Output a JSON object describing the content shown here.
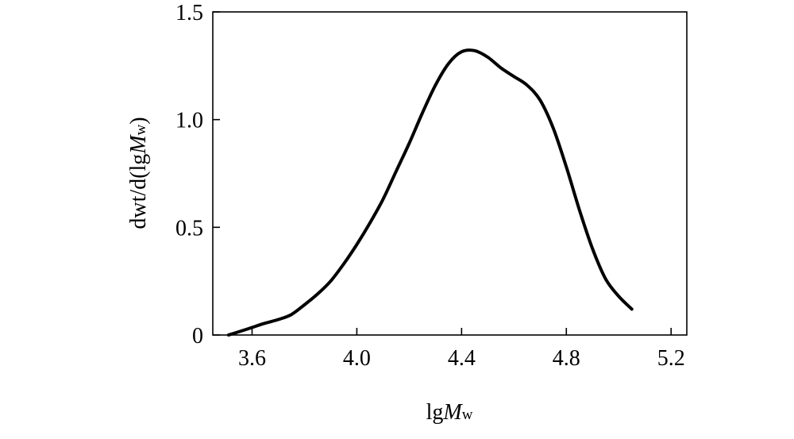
{
  "chart_data": {
    "type": "line",
    "xlabel_main": "lg",
    "xlabel_italic": "M",
    "xlabel_sub": "w",
    "ylabel_main": "dwt/d(lg",
    "ylabel_italic": "M",
    "ylabel_sub": "w",
    "ylabel_close": ")",
    "xlim": [
      3.45,
      5.26
    ],
    "ylim": [
      0,
      1.5
    ],
    "xticks": [
      3.6,
      4.0,
      4.4,
      4.8,
      5.2
    ],
    "xtick_labels": [
      "3.6",
      "4.0",
      "4.4",
      "4.8",
      "5.2"
    ],
    "yticks": [
      0,
      0.5,
      1.0,
      1.5
    ],
    "ytick_labels": [
      "0",
      "0.5",
      "1.0",
      "1.5"
    ],
    "grid": false,
    "series": [
      {
        "color": "#000000",
        "x": [
          3.51,
          3.55,
          3.6,
          3.65,
          3.7,
          3.75,
          3.8,
          3.85,
          3.9,
          3.95,
          4.0,
          4.05,
          4.1,
          4.15,
          4.2,
          4.25,
          4.3,
          4.35,
          4.4,
          4.45,
          4.5,
          4.55,
          4.6,
          4.65,
          4.7,
          4.75,
          4.8,
          4.85,
          4.9,
          4.95,
          5.0,
          5.05
        ],
        "y": [
          0.0,
          0.015,
          0.035,
          0.055,
          0.072,
          0.095,
          0.14,
          0.19,
          0.25,
          0.33,
          0.42,
          0.52,
          0.63,
          0.76,
          0.89,
          1.03,
          1.16,
          1.26,
          1.315,
          1.32,
          1.29,
          1.24,
          1.2,
          1.16,
          1.09,
          0.96,
          0.78,
          0.58,
          0.4,
          0.26,
          0.18,
          0.12
        ]
      }
    ]
  }
}
